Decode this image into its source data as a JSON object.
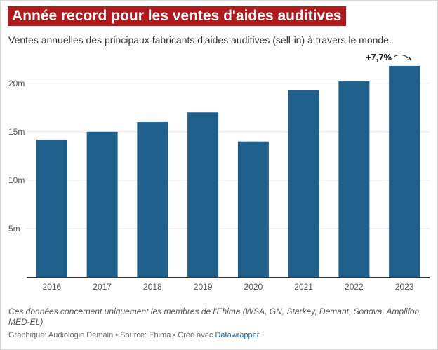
{
  "colors": {
    "title_bg": "#b0191e",
    "bar": "#1f5f8b",
    "grid": "#e2e2e2",
    "axis": "#333333"
  },
  "chart_data": {
    "type": "bar",
    "title": "Année record pour les ventes d'aides auditives",
    "subtitle": "Ventes annuelles des principaux fabricants d'aides auditives (sell-in) à travers le monde.",
    "categories": [
      "2016",
      "2017",
      "2018",
      "2019",
      "2020",
      "2021",
      "2022",
      "2023"
    ],
    "values": [
      14.2,
      15.0,
      16.0,
      17.0,
      14.0,
      19.3,
      20.2,
      21.8
    ],
    "unit_suffix": "m",
    "yticks": [
      5,
      10,
      15,
      20
    ],
    "ylim": [
      0,
      23.1
    ],
    "xlabel": "",
    "ylabel": "",
    "annotation": {
      "category": "2023",
      "text": "+7,7%"
    }
  },
  "notes": {
    "text": "Ces données concernent uniquement les membres de l'Ehima (WSA, GN, Starkey, Demant, Sonova, Amplifon, MED-EL)"
  },
  "footer": {
    "prefix": "Graphique: Audiologie Demain • Source: Ehima • Créé avec ",
    "link": "Datawrapper"
  }
}
